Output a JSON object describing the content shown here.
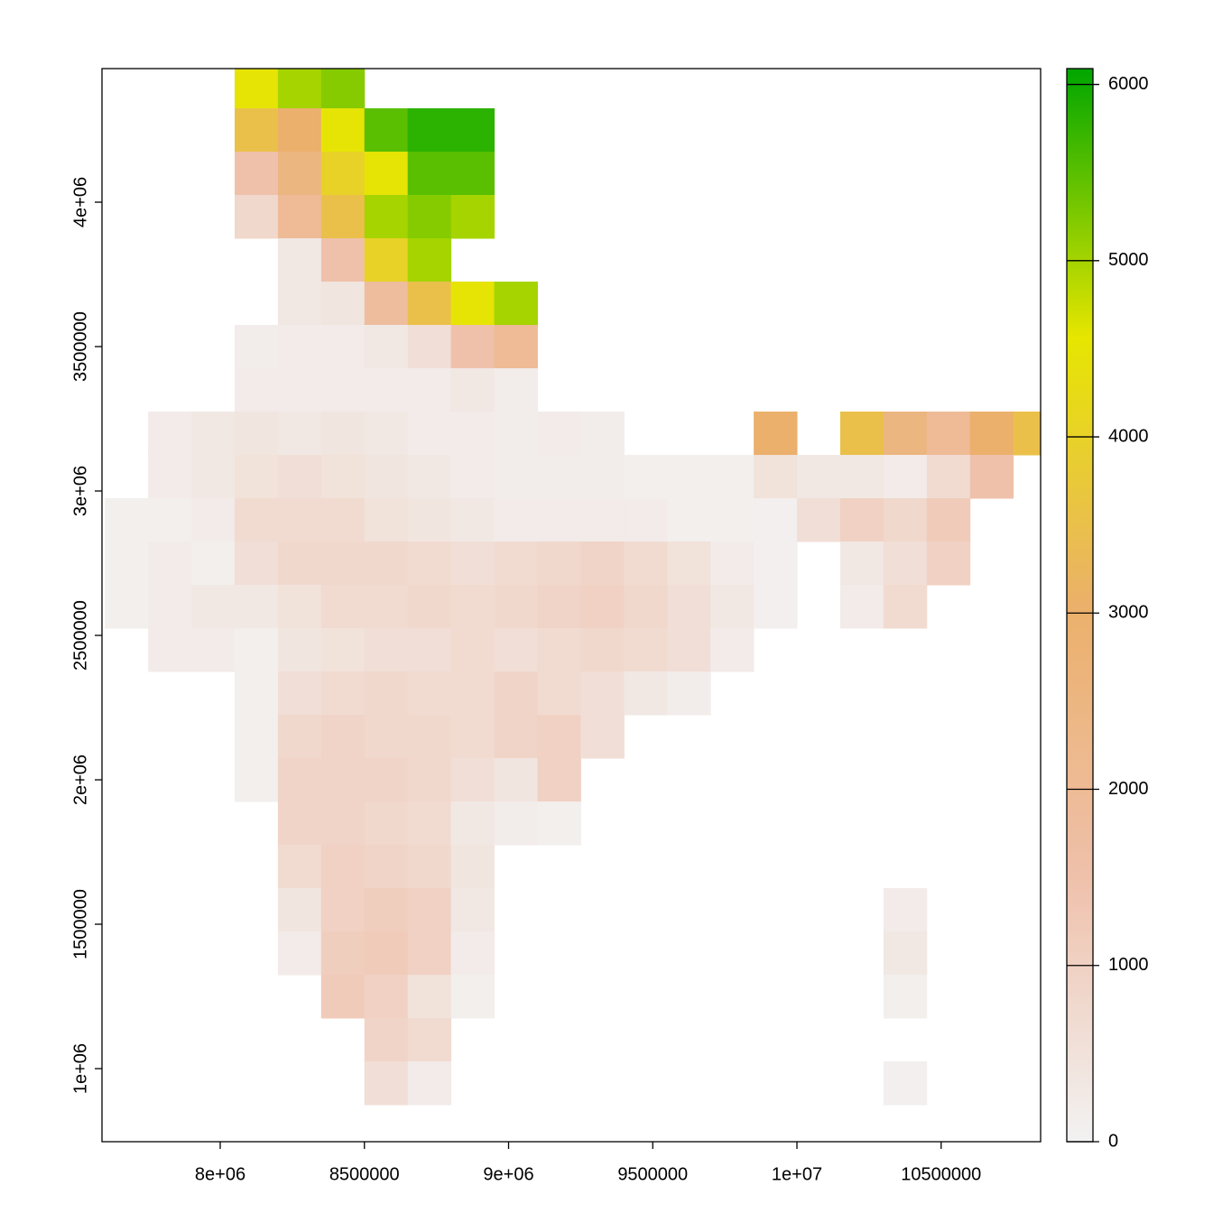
{
  "chart_data": {
    "type": "raster",
    "x": [
      7675000,
      7825000,
      7975000,
      8125000,
      8275000,
      8425000,
      8575000,
      8725000,
      8875000,
      9025000,
      9175000,
      9325000,
      9475000,
      9625000,
      9775000,
      9925000,
      10075000,
      10225000,
      10375000,
      10525000,
      10675000,
      10825000
    ],
    "y": [
      4400000,
      4250000,
      4100000,
      3950000,
      3800000,
      3650000,
      3500000,
      3350000,
      3200000,
      3050000,
      2900000,
      2750000,
      2600000,
      2450000,
      2300000,
      2150000,
      2000000,
      1850000,
      1700000,
      1550000,
      1400000,
      1250000,
      1100000,
      950000
    ],
    "values": [
      [
        null,
        null,
        null,
        4500,
        5000,
        5200,
        null,
        null,
        null,
        null,
        null,
        null,
        null,
        null,
        null,
        null,
        null,
        null,
        null,
        null,
        null,
        null
      ],
      [
        null,
        null,
        null,
        3500,
        3000,
        4500,
        5500,
        5800,
        5800,
        null,
        null,
        null,
        null,
        null,
        null,
        null,
        null,
        null,
        null,
        null,
        null,
        null
      ],
      [
        null,
        null,
        null,
        1500,
        2500,
        4000,
        4500,
        5500,
        5500,
        null,
        null,
        null,
        null,
        null,
        null,
        null,
        null,
        null,
        null,
        null,
        null,
        null
      ],
      [
        null,
        null,
        null,
        800,
        2000,
        3500,
        5000,
        5200,
        5000,
        null,
        null,
        null,
        null,
        null,
        null,
        null,
        null,
        null,
        null,
        null,
        null,
        null
      ],
      [
        null,
        null,
        null,
        null,
        300,
        1500,
        4000,
        5000,
        null,
        null,
        null,
        null,
        null,
        null,
        null,
        null,
        null,
        null,
        null,
        null,
        null,
        null
      ],
      [
        null,
        null,
        null,
        null,
        300,
        400,
        1800,
        3500,
        4500,
        5000,
        null,
        null,
        null,
        null,
        null,
        null,
        null,
        null,
        null,
        null,
        null,
        null
      ],
      [
        null,
        null,
        null,
        150,
        200,
        200,
        300,
        600,
        1500,
        2000,
        null,
        null,
        null,
        null,
        null,
        null,
        null,
        null,
        null,
        null,
        null,
        null
      ],
      [
        null,
        null,
        null,
        200,
        200,
        200,
        200,
        200,
        300,
        150,
        null,
        null,
        null,
        null,
        null,
        null,
        null,
        null,
        null,
        null,
        null,
        null
      ],
      [
        null,
        200,
        300,
        400,
        300,
        400,
        300,
        200,
        200,
        150,
        200,
        150,
        null,
        null,
        null,
        3000,
        null,
        3500,
        2500,
        2000,
        3000,
        3500
      ],
      [
        null,
        200,
        300,
        500,
        600,
        500,
        400,
        300,
        200,
        150,
        150,
        150,
        100,
        100,
        100,
        500,
        300,
        300,
        200,
        700,
        1500,
        null
      ],
      [
        100,
        100,
        200,
        700,
        700,
        700,
        500,
        400,
        300,
        200,
        200,
        200,
        200,
        100,
        100,
        80,
        600,
        1000,
        800,
        1200,
        null,
        null
      ],
      [
        100,
        200,
        100,
        600,
        800,
        800,
        800,
        700,
        600,
        700,
        800,
        900,
        700,
        500,
        200,
        80,
        null,
        300,
        600,
        1000,
        null,
        null
      ],
      [
        100,
        200,
        300,
        300,
        500,
        700,
        700,
        800,
        700,
        800,
        900,
        1000,
        800,
        600,
        300,
        80,
        null,
        200,
        700,
        null,
        null,
        null
      ],
      [
        null,
        200,
        200,
        100,
        400,
        500,
        600,
        600,
        700,
        600,
        700,
        800,
        700,
        600,
        200,
        null,
        null,
        null,
        null,
        null,
        null,
        null
      ],
      [
        null,
        null,
        null,
        100,
        600,
        700,
        800,
        700,
        700,
        900,
        700,
        600,
        300,
        150,
        null,
        null,
        null,
        null,
        null,
        null,
        null,
        null
      ],
      [
        null,
        null,
        null,
        100,
        800,
        900,
        800,
        800,
        700,
        900,
        1000,
        600,
        null,
        null,
        null,
        null,
        null,
        null,
        null,
        null,
        null,
        null
      ],
      [
        null,
        null,
        null,
        100,
        900,
        900,
        900,
        800,
        600,
        400,
        1000,
        null,
        null,
        null,
        null,
        null,
        null,
        null,
        null,
        null,
        null,
        null
      ],
      [
        null,
        null,
        null,
        null,
        900,
        900,
        800,
        700,
        300,
        150,
        100,
        null,
        null,
        null,
        null,
        null,
        null,
        null,
        null,
        null,
        null,
        null
      ],
      [
        null,
        null,
        null,
        null,
        700,
        1000,
        900,
        800,
        400,
        null,
        null,
        null,
        null,
        null,
        null,
        null,
        null,
        null,
        null,
        null,
        null,
        null
      ],
      [
        null,
        null,
        null,
        null,
        400,
        1000,
        1100,
        1000,
        300,
        null,
        null,
        null,
        null,
        null,
        null,
        null,
        null,
        null,
        200,
        null,
        null,
        null
      ],
      [
        null,
        null,
        null,
        null,
        200,
        1100,
        1200,
        1000,
        200,
        null,
        null,
        null,
        null,
        null,
        null,
        null,
        null,
        null,
        300,
        null,
        null,
        null
      ],
      [
        null,
        null,
        null,
        null,
        null,
        1200,
        1000,
        500,
        100,
        null,
        null,
        null,
        null,
        null,
        null,
        null,
        null,
        null,
        100,
        null,
        null,
        null
      ],
      [
        null,
        null,
        null,
        null,
        null,
        null,
        900,
        700,
        null,
        null,
        null,
        null,
        null,
        null,
        null,
        null,
        null,
        null,
        null,
        null,
        null,
        null
      ],
      [
        null,
        null,
        null,
        null,
        null,
        null,
        600,
        200,
        null,
        null,
        null,
        null,
        null,
        null,
        null,
        null,
        null,
        null,
        80,
        null,
        null,
        null
      ]
    ],
    "xlim": [
      7590000,
      10845000
    ],
    "ylim": [
      747000,
      4462500
    ],
    "xticks": [
      {
        "value": 8000000,
        "label": "8e+06"
      },
      8500000,
      {
        "value": 9000000,
        "label": "9e+06"
      },
      9500000,
      {
        "value": 10000000,
        "label": "1e+07"
      },
      10500000
    ],
    "yticks": [
      {
        "value": 1000000,
        "label": "1e+06"
      },
      1500000,
      {
        "value": 2000000,
        "label": "2e+06"
      },
      2500000,
      {
        "value": 3000000,
        "label": "3e+06"
      },
      3500000,
      {
        "value": 4000000,
        "label": "4e+06"
      }
    ],
    "zlim": [
      0,
      6090
    ],
    "zticks": [
      0,
      1000,
      2000,
      3000,
      4000,
      5000,
      6000
    ],
    "colors": [
      "#F2F2F2",
      "#EFC0AA",
      "#EBB06A",
      "#E6E600",
      "#00A600"
    ]
  }
}
